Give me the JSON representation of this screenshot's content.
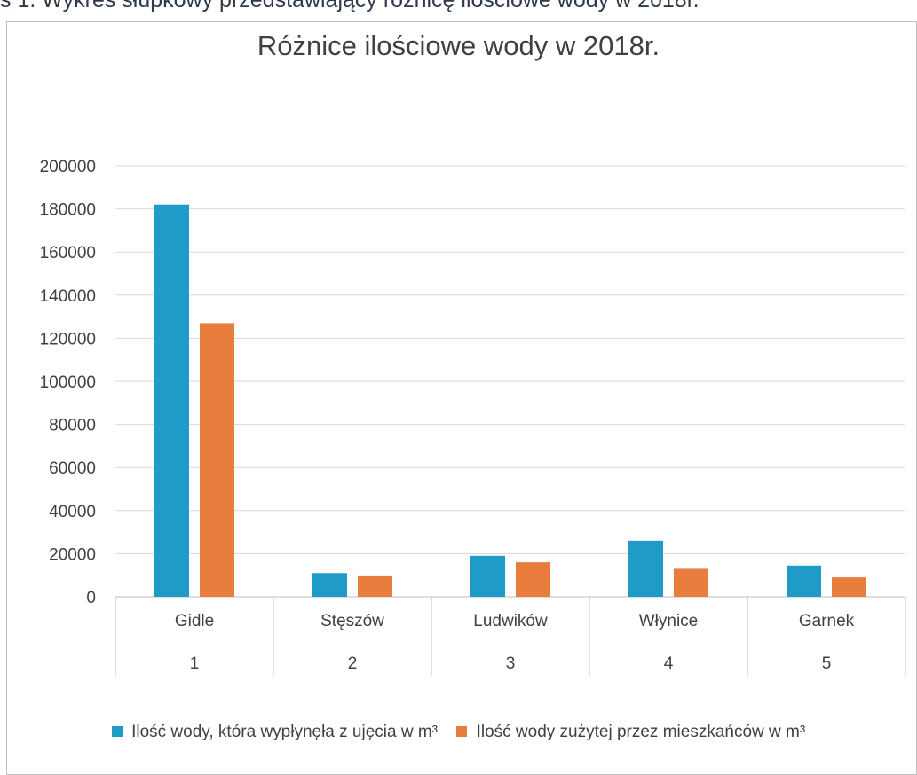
{
  "caption": "s 1. Wykres słupkowy przedstawiający różnicę ilościowe wody w 2018r.",
  "chart_data": {
    "type": "bar",
    "title": "Różnice ilościowe wody w 2018r.",
    "categories": [
      "Gidle",
      "Stęszów",
      "Ludwików",
      "Włynice",
      "Garnek"
    ],
    "category_numbers": [
      "1",
      "2",
      "3",
      "4",
      "5"
    ],
    "ylim": [
      0,
      200000
    ],
    "yticks": [
      "0",
      "20000",
      "40000",
      "60000",
      "80000",
      "100000",
      "120000",
      "140000",
      "160000",
      "180000",
      "200000"
    ],
    "grid": true,
    "legend_position": "bottom",
    "series": [
      {
        "name": "Ilość wody, która wypłynęła z ujęcia w m³",
        "color": "#1f9bc7",
        "values": [
          182000,
          11000,
          19000,
          26000,
          14500
        ]
      },
      {
        "name": "Ilość wody zużytej przez mieszkańców w m³",
        "color": "#e87d3e",
        "values": [
          127000,
          9500,
          16000,
          13000,
          9000
        ]
      }
    ]
  }
}
